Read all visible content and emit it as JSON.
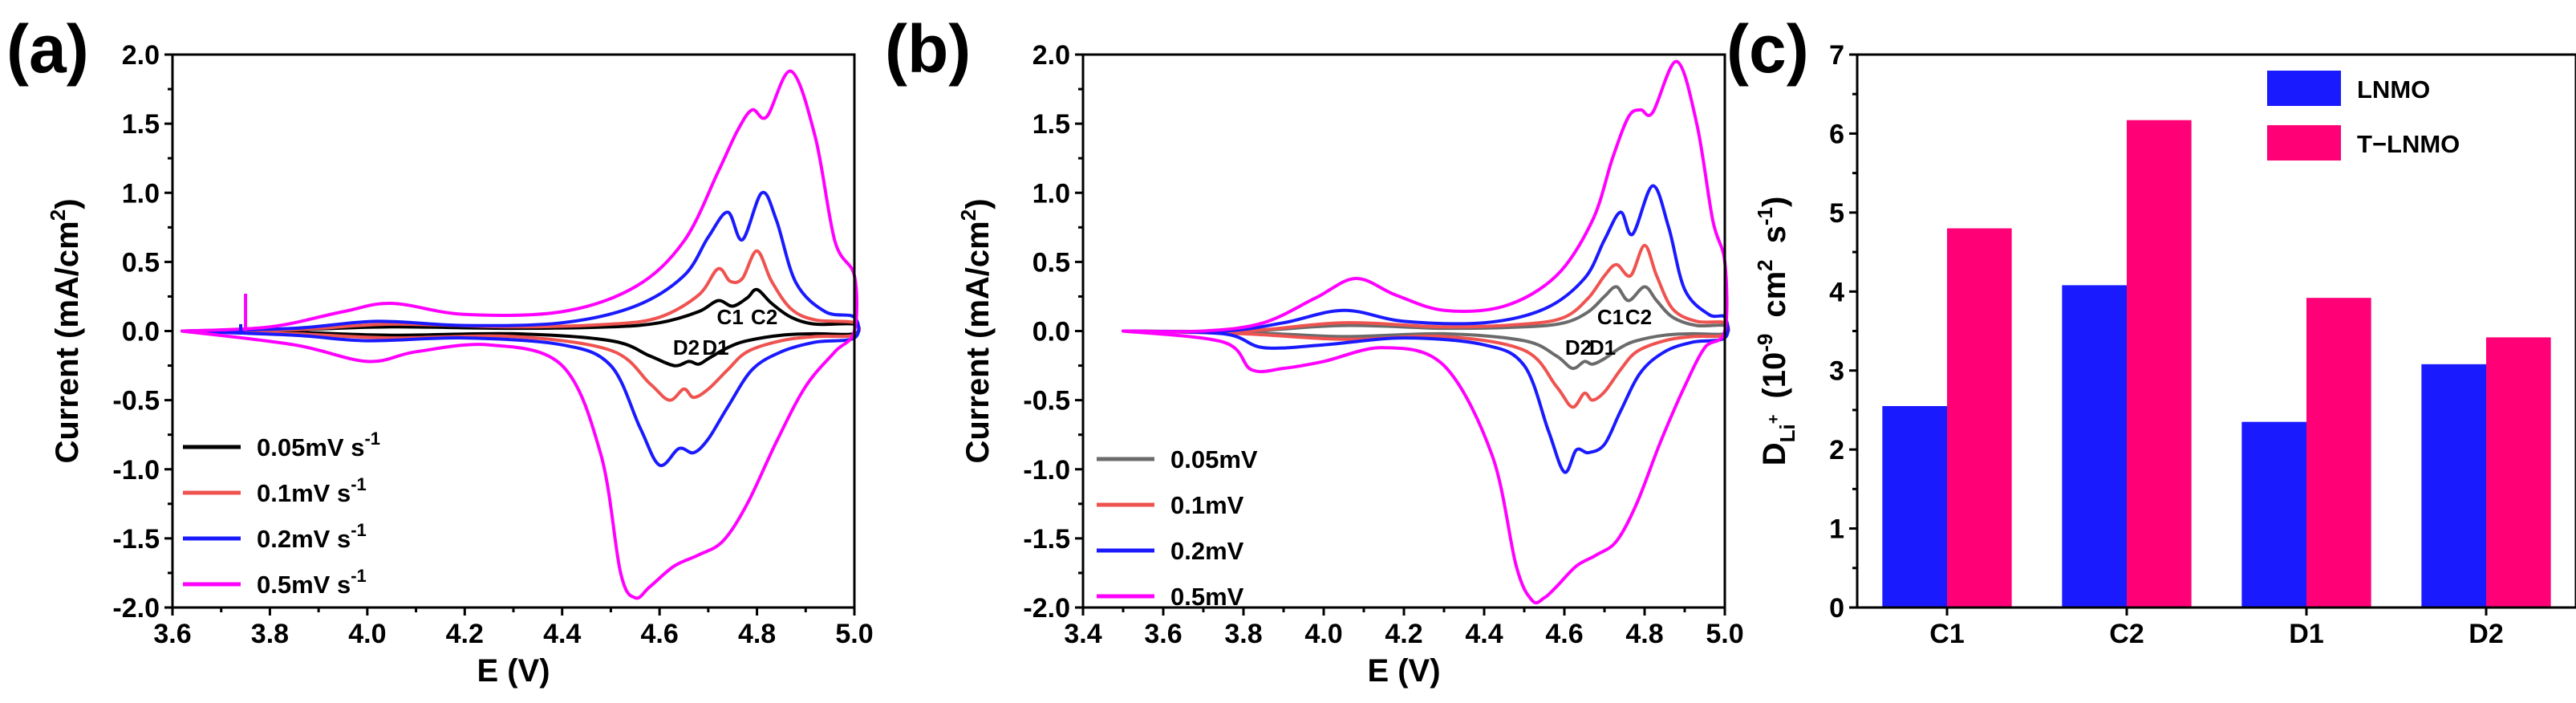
{
  "chart_data": [
    {
      "type": "line",
      "panel_label": "(a)",
      "xlabel": "E (V)",
      "ylabel_main": "Current (mA/cm",
      "ylabel_sup": "2",
      "ylabel_end": ")",
      "xlim": [
        3.6,
        5.0
      ],
      "ylim": [
        -2.0,
        2.0
      ],
      "xticks": [
        "3.6",
        "3.8",
        "4.0",
        "4.2",
        "4.4",
        "4.6",
        "4.8",
        "5.0"
      ],
      "yticks": [
        "-2.0",
        "-1.5",
        "-1.0",
        "-0.5",
        "0.0",
        "0.5",
        "1.0",
        "1.5",
        "2.0"
      ],
      "legend": [
        {
          "main": "0.05mV s",
          "sup": "-1",
          "color": "#000000"
        },
        {
          "main": "0.1mV s",
          "sup": "-1",
          "color": "#ef5350"
        },
        {
          "main": "0.2mV s",
          "sup": "-1",
          "color": "#1a1aff"
        },
        {
          "main": "0.5mV s",
          "sup": "-1",
          "color": "#ff00ff"
        }
      ],
      "annotations": [
        "C1",
        "C2",
        "D2",
        "D1"
      ],
      "series": [
        {
          "name": "0.05mV s-1",
          "color": "#000000",
          "ox": [
            3.62,
            3.85,
            4.05,
            4.3,
            4.5,
            4.6,
            4.68,
            4.72,
            4.75,
            4.78,
            4.8,
            4.83,
            4.87,
            4.92,
            5.0
          ],
          "oy": [
            0.0,
            0.01,
            0.03,
            0.02,
            0.03,
            0.06,
            0.14,
            0.22,
            0.18,
            0.24,
            0.3,
            0.2,
            0.1,
            0.05,
            0.05
          ],
          "rx": [
            5.0,
            4.92,
            4.85,
            4.78,
            4.74,
            4.7,
            4.68,
            4.66,
            4.63,
            4.58,
            4.5,
            4.3,
            4.05,
            3.85,
            3.62
          ],
          "ry": [
            -0.02,
            -0.02,
            -0.03,
            -0.07,
            -0.12,
            -0.2,
            -0.24,
            -0.22,
            -0.25,
            -0.18,
            -0.07,
            -0.02,
            -0.03,
            -0.01,
            0.0
          ]
        },
        {
          "name": "0.1mV s-1",
          "color": "#ef5350",
          "ox": [
            3.62,
            3.85,
            4.05,
            4.3,
            4.5,
            4.6,
            4.68,
            4.72,
            4.745,
            4.77,
            4.8,
            4.83,
            4.87,
            4.92,
            5.0
          ],
          "oy": [
            0.0,
            0.01,
            0.05,
            0.03,
            0.05,
            0.1,
            0.26,
            0.45,
            0.36,
            0.38,
            0.58,
            0.36,
            0.16,
            0.08,
            0.06
          ],
          "rx": [
            5.0,
            4.92,
            4.85,
            4.78,
            4.74,
            4.7,
            4.67,
            4.65,
            4.62,
            4.58,
            4.5,
            4.3,
            4.05,
            3.85,
            3.62
          ],
          "ry": [
            -0.03,
            -0.04,
            -0.07,
            -0.15,
            -0.28,
            -0.42,
            -0.48,
            -0.42,
            -0.5,
            -0.38,
            -0.14,
            -0.04,
            -0.05,
            -0.02,
            0.0
          ]
        },
        {
          "name": "0.2mV s-1",
          "color": "#1a1aff",
          "ox": [
            3.62,
            3.85,
            4.02,
            4.2,
            4.4,
            4.55,
            4.65,
            4.7,
            4.74,
            4.77,
            4.81,
            4.84,
            4.88,
            4.94,
            5.0
          ],
          "oy": [
            0.0,
            0.02,
            0.07,
            0.04,
            0.06,
            0.18,
            0.4,
            0.68,
            0.86,
            0.66,
            1.0,
            0.8,
            0.35,
            0.14,
            0.1
          ],
          "rx": [
            5.0,
            4.92,
            4.85,
            4.79,
            4.74,
            4.7,
            4.67,
            4.64,
            4.6,
            4.56,
            4.5,
            4.4,
            4.2,
            4.0,
            3.85,
            3.62
          ],
          "ry": [
            -0.05,
            -0.08,
            -0.15,
            -0.28,
            -0.55,
            -0.78,
            -0.88,
            -0.85,
            -0.97,
            -0.7,
            -0.25,
            -0.1,
            -0.05,
            -0.07,
            -0.03,
            0.0
          ]
        },
        {
          "name": "0.5mV s-1",
          "color": "#ff00ff",
          "ox": [
            3.62,
            3.8,
            3.95,
            4.05,
            4.2,
            4.4,
            4.55,
            4.65,
            4.72,
            4.76,
            4.79,
            4.82,
            4.87,
            4.92,
            4.96,
            5.0
          ],
          "oy": [
            0.0,
            0.03,
            0.14,
            0.2,
            0.12,
            0.14,
            0.32,
            0.65,
            1.15,
            1.45,
            1.6,
            1.55,
            1.88,
            1.4,
            0.65,
            0.4
          ],
          "rx": [
            5.0,
            4.96,
            4.9,
            4.84,
            4.78,
            4.73,
            4.68,
            4.63,
            4.58,
            4.55,
            4.52,
            4.48,
            4.4,
            4.25,
            4.1,
            4.0,
            3.85,
            3.62
          ],
          "ry": [
            0.0,
            -0.15,
            -0.4,
            -0.8,
            -1.25,
            -1.52,
            -1.62,
            -1.7,
            -1.85,
            -1.93,
            -1.75,
            -0.9,
            -0.25,
            -0.1,
            -0.15,
            -0.22,
            -0.1,
            0.0
          ]
        }
      ]
    },
    {
      "type": "line",
      "panel_label": "(b)",
      "xlabel": "E (V)",
      "ylabel_main": "Current (mA/cm",
      "ylabel_sup": "2",
      "ylabel_end": ")",
      "xlim": [
        3.4,
        5.0
      ],
      "ylim": [
        -2.0,
        2.0
      ],
      "xticks": [
        "3.4",
        "3.6",
        "3.8",
        "4.0",
        "4.2",
        "4.4",
        "4.6",
        "4.8",
        "5.0"
      ],
      "yticks": [
        "-2.0",
        "-1.5",
        "-1.0",
        "-0.5",
        "0.0",
        "0.5",
        "1.0",
        "1.5",
        "2.0"
      ],
      "legend": [
        {
          "main": "0.05mV",
          "color": "#6b6b6b"
        },
        {
          "main": "0.1mV",
          "color": "#ef5350"
        },
        {
          "main": "0.2mV",
          "color": "#1a1aff"
        },
        {
          "main": "0.5mV",
          "color": "#ff00ff"
        }
      ],
      "annotations": [
        "C1",
        "C2",
        "D2",
        "D1"
      ],
      "series": [
        {
          "name": "0.05mV",
          "color": "#6b6b6b",
          "ox": [
            3.5,
            3.8,
            4.05,
            4.3,
            4.5,
            4.6,
            4.66,
            4.7,
            4.73,
            4.76,
            4.8,
            4.83,
            4.87,
            4.93,
            5.0
          ],
          "oy": [
            0.0,
            0.0,
            0.04,
            0.02,
            0.03,
            0.06,
            0.14,
            0.25,
            0.32,
            0.22,
            0.32,
            0.22,
            0.1,
            0.04,
            0.04
          ],
          "rx": [
            5.0,
            4.92,
            4.85,
            4.78,
            4.74,
            4.7,
            4.67,
            4.65,
            4.62,
            4.58,
            4.5,
            4.3,
            4.05,
            3.8,
            3.5
          ],
          "ry": [
            -0.02,
            -0.02,
            -0.03,
            -0.07,
            -0.12,
            -0.2,
            -0.24,
            -0.22,
            -0.27,
            -0.18,
            -0.07,
            -0.02,
            -0.04,
            -0.01,
            0.0
          ]
        },
        {
          "name": "0.1mV",
          "color": "#ef5350",
          "ox": [
            3.5,
            3.8,
            4.05,
            4.3,
            4.5,
            4.6,
            4.66,
            4.7,
            4.73,
            4.765,
            4.8,
            4.83,
            4.87,
            4.93,
            5.0
          ],
          "oy": [
            0.0,
            0.0,
            0.06,
            0.03,
            0.05,
            0.1,
            0.24,
            0.4,
            0.48,
            0.4,
            0.62,
            0.4,
            0.16,
            0.07,
            0.06
          ],
          "rx": [
            5.0,
            4.92,
            4.85,
            4.78,
            4.74,
            4.7,
            4.67,
            4.65,
            4.62,
            4.58,
            4.5,
            4.3,
            4.05,
            3.8,
            3.5
          ],
          "ry": [
            -0.03,
            -0.04,
            -0.07,
            -0.15,
            -0.28,
            -0.44,
            -0.5,
            -0.45,
            -0.55,
            -0.4,
            -0.14,
            -0.04,
            -0.06,
            -0.02,
            0.0
          ]
        },
        {
          "name": "0.2mV",
          "color": "#1a1aff",
          "ox": [
            3.5,
            3.75,
            3.9,
            4.05,
            4.2,
            4.4,
            4.55,
            4.65,
            4.7,
            4.74,
            4.77,
            4.82,
            4.86,
            4.9,
            4.96,
            5.0
          ],
          "oy": [
            0.0,
            0.0,
            0.06,
            0.15,
            0.07,
            0.06,
            0.16,
            0.38,
            0.66,
            0.86,
            0.7,
            1.05,
            0.75,
            0.3,
            0.12,
            0.1
          ],
          "rx": [
            5.0,
            4.92,
            4.85,
            4.79,
            4.74,
            4.7,
            4.66,
            4.63,
            4.6,
            4.56,
            4.5,
            4.4,
            4.2,
            4.0,
            3.85,
            3.75,
            3.5
          ],
          "ry": [
            -0.05,
            -0.08,
            -0.15,
            -0.3,
            -0.58,
            -0.82,
            -0.88,
            -0.86,
            -1.02,
            -0.72,
            -0.25,
            -0.1,
            -0.05,
            -0.1,
            -0.12,
            -0.02,
            0.0
          ]
        },
        {
          "name": "0.5mV",
          "color": "#ff00ff",
          "ox": [
            3.5,
            3.7,
            3.85,
            3.98,
            4.08,
            4.18,
            4.3,
            4.45,
            4.58,
            4.67,
            4.72,
            4.76,
            4.79,
            4.82,
            4.88,
            4.93,
            4.97,
            5.0
          ],
          "oy": [
            0.0,
            0.0,
            0.06,
            0.24,
            0.38,
            0.26,
            0.15,
            0.18,
            0.4,
            0.8,
            1.25,
            1.55,
            1.6,
            1.58,
            1.95,
            1.5,
            0.8,
            0.5
          ],
          "rx": [
            5.0,
            4.95,
            4.9,
            4.84,
            4.78,
            4.73,
            4.68,
            4.63,
            4.58,
            4.55,
            4.52,
            4.48,
            4.42,
            4.3,
            4.15,
            4.0,
            3.9,
            3.82,
            3.75,
            3.5
          ],
          "ry": [
            0.0,
            -0.12,
            -0.4,
            -0.8,
            -1.25,
            -1.52,
            -1.62,
            -1.7,
            -1.85,
            -1.93,
            -1.95,
            -1.7,
            -0.9,
            -0.25,
            -0.12,
            -0.22,
            -0.27,
            -0.28,
            -0.08,
            0.0
          ]
        }
      ]
    },
    {
      "type": "bar",
      "panel_label": "(c)",
      "categories": [
        "C1",
        "C2",
        "D1",
        "D2"
      ],
      "series": [
        {
          "name": "LNMO",
          "color": "#1a1aff",
          "values": [
            2.55,
            4.08,
            2.35,
            3.08
          ]
        },
        {
          "name": "T−LNMO",
          "color": "#ff0077",
          "values": [
            4.8,
            6.17,
            3.92,
            3.42
          ]
        }
      ],
      "ylabel_d": "D",
      "ylabel_sub": "Li",
      "ylabel_subsup": "+",
      "ylabel_open": "(10",
      "ylabel_exp": "-9",
      "ylabel_cm": "cm",
      "ylabel_cmexp": "2",
      "ylabel_s": "s",
      "ylabel_sexp": "-1",
      "ylabel_close": ")",
      "ylim": [
        0,
        7
      ],
      "yticks": [
        "0",
        "1",
        "2",
        "3",
        "4",
        "5",
        "6",
        "7"
      ]
    }
  ]
}
